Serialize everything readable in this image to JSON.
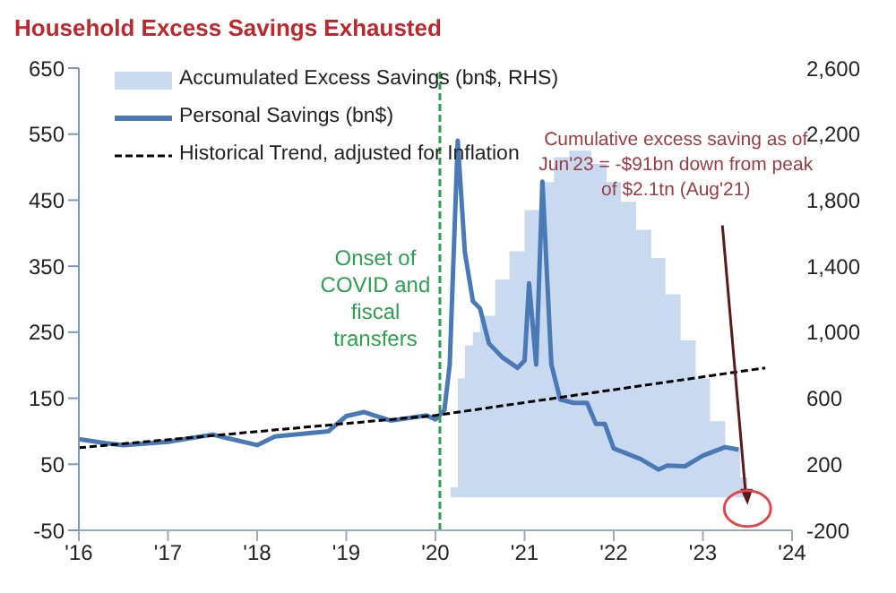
{
  "chart_data": {
    "type": "line",
    "title": "Household Excess Savings Exhausted",
    "xlim": [
      2016,
      2024
    ],
    "xticks": [
      {
        "value": 2016,
        "label": "'16"
      },
      {
        "value": 2017,
        "label": "'17"
      },
      {
        "value": 2018,
        "label": "'18"
      },
      {
        "value": 2019,
        "label": "'19"
      },
      {
        "value": 2020,
        "label": "'20"
      },
      {
        "value": 2021,
        "label": "'21"
      },
      {
        "value": 2022,
        "label": "'22"
      },
      {
        "value": 2023,
        "label": "'23"
      },
      {
        "value": 2024,
        "label": "'24"
      }
    ],
    "ylim": [
      -50,
      650
    ],
    "yticks": [
      -50,
      50,
      150,
      250,
      350,
      450,
      550,
      650
    ],
    "y2lim": [
      -200,
      2600
    ],
    "y2ticks": [
      -200,
      200,
      {
        "value": 600,
        "label": "600"
      },
      {
        "value": 1000,
        "label": "1,000"
      },
      {
        "value": 1400,
        "label": "1,400"
      },
      {
        "value": 1800,
        "label": "1,800"
      },
      {
        "value": 2200,
        "label": "2,200"
      },
      {
        "value": 2600,
        "label": "2,600"
      }
    ],
    "legend": "top left",
    "series": [
      {
        "name": "Accumulated Excess Savings (bn$, RHS)",
        "type": "area",
        "axis": "y2",
        "color": "#c9d9ef",
        "x": [
          2020.17,
          2020.25,
          2020.33,
          2020.42,
          2020.5,
          2020.67,
          2020.83,
          2021.0,
          2021.17,
          2021.33,
          2021.5,
          2021.67,
          2021.75,
          2021.92,
          2022.08,
          2022.25,
          2022.42,
          2022.58,
          2022.75,
          2022.92,
          2023.08,
          2023.25,
          2023.42,
          2023.5
        ],
        "values": [
          60,
          720,
          920,
          1000,
          1100,
          1320,
          1490,
          1740,
          1910,
          2060,
          2100,
          2100,
          2020,
          1910,
          1790,
          1620,
          1450,
          1230,
          950,
          720,
          460,
          300,
          120,
          -90
        ]
      },
      {
        "name": "Personal Savings (bn$)",
        "color": "#4a7ab5",
        "line_style": "solid",
        "x": [
          2016.0,
          2016.3,
          2016.5,
          2017.0,
          2017.5,
          2018.0,
          2018.2,
          2018.8,
          2019.0,
          2019.2,
          2019.5,
          2019.9,
          2020.0,
          2020.1,
          2020.16,
          2020.25,
          2020.33,
          2020.42,
          2020.5,
          2020.6,
          2020.75,
          2020.92,
          2021.0,
          2021.05,
          2021.13,
          2021.2,
          2021.3,
          2021.4,
          2021.55,
          2021.7,
          2021.8,
          2021.9,
          2022.0,
          2022.3,
          2022.5,
          2022.6,
          2022.8,
          2023.0,
          2023.25,
          2023.4
        ],
        "values": [
          88,
          82,
          79,
          84,
          95,
          79,
          92,
          100,
          123,
          129,
          116,
          124,
          118,
          132,
          201,
          540,
          371,
          297,
          286,
          233,
          212,
          196,
          207,
          324,
          201,
          478,
          201,
          148,
          143,
          143,
          111,
          111,
          74,
          58,
          42,
          48,
          47,
          63,
          76,
          72
        ]
      },
      {
        "name": "Historical Trend, adjusted for Inflation",
        "color": "#000000",
        "line_style": "dashed",
        "x": [
          2016,
          2020,
          2023.7
        ],
        "values": [
          75,
          124,
          196
        ]
      }
    ],
    "ref_lines": [
      {
        "axis": "x",
        "value": 2020.05,
        "label": "Onset of COVID and fiscal transfers",
        "color": "#2ea04f",
        "line_style": "dashed"
      }
    ],
    "annotations": [
      "Cumulative excess saving as of Jun'23 = -$91bn down from peak of $2.1tn (Aug'21)"
    ]
  }
}
